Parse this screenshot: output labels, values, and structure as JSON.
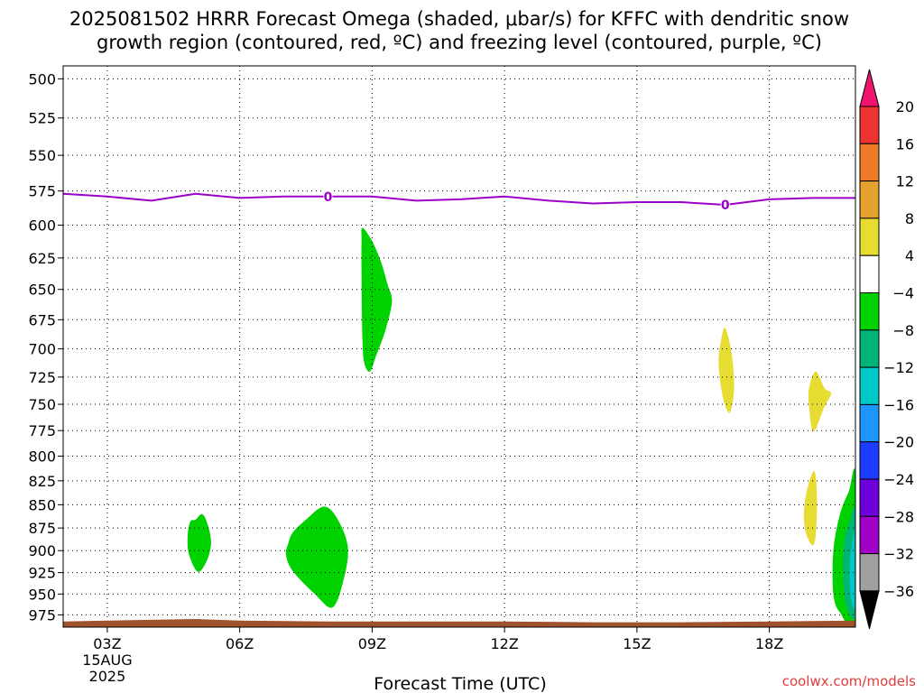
{
  "chart_data": {
    "type": "contour",
    "title": [
      "2025081502 HRRR Forecast Omega (shaded, μbar/s) for KFFC with dendritic snow",
      "growth region (contoured, red, ºC) and freezing level (contoured, purple, ºC)"
    ],
    "xlabel": "Forecast Time (UTC)",
    "ylabel": "",
    "x_ticks": [
      {
        "hour": 3,
        "label": "03Z",
        "sub": [
          "15AUG",
          "2025"
        ]
      },
      {
        "hour": 6,
        "label": "06Z",
        "sub": []
      },
      {
        "hour": 9,
        "label": "09Z",
        "sub": []
      },
      {
        "hour": 12,
        "label": "12Z",
        "sub": []
      },
      {
        "hour": 15,
        "label": "15Z",
        "sub": []
      },
      {
        "hour": 18,
        "label": "18Z",
        "sub": []
      }
    ],
    "xlim": [
      2,
      19.95
    ],
    "y_ticks": [
      500,
      525,
      550,
      575,
      600,
      625,
      650,
      675,
      700,
      725,
      750,
      775,
      800,
      825,
      850,
      875,
      900,
      925,
      950,
      975
    ],
    "ylim": [
      492,
      990
    ],
    "y_scale": "log",
    "grid": true,
    "colorbar": {
      "labels": [
        "20",
        "16",
        "12",
        "8",
        "4",
        "−4",
        "−8",
        "−12",
        "−16",
        "−20",
        "−24",
        "−28",
        "−32",
        "−36"
      ],
      "colors": [
        "#f0146e",
        "#ee3232",
        "#ee7a28",
        "#e6a22e",
        "#e6dc32",
        "#ffffff",
        "#00d200",
        "#00b478",
        "#00c8c8",
        "#1e96ff",
        "#1e3cff",
        "#6e00dc",
        "#a000c8",
        "#a0a0a0",
        "#000000"
      ]
    },
    "freezing_level": {
      "color": "#9a00c8",
      "label": "0",
      "label_points": [
        [
          8.0,
          579
        ],
        [
          17.0,
          585
        ]
      ],
      "points": [
        [
          2.0,
          577
        ],
        [
          3.0,
          579
        ],
        [
          4.0,
          582
        ],
        [
          5.0,
          577
        ],
        [
          6.0,
          580
        ],
        [
          7.0,
          579
        ],
        [
          8.0,
          579
        ],
        [
          9.0,
          579
        ],
        [
          10.0,
          582
        ],
        [
          11.0,
          581
        ],
        [
          12.0,
          579
        ],
        [
          13.0,
          582
        ],
        [
          14.0,
          584
        ],
        [
          15.0,
          583
        ],
        [
          16.0,
          583
        ],
        [
          17.0,
          585
        ],
        [
          18.0,
          581
        ],
        [
          19.0,
          580
        ],
        [
          19.95,
          580
        ]
      ]
    },
    "omega_regions": [
      {
        "value_range": [
          -8,
          -4
        ],
        "color": "#00d200",
        "points": [
          [
            8.78,
            602
          ],
          [
            9.0,
            612
          ],
          [
            9.2,
            628
          ],
          [
            9.35,
            646
          ],
          [
            9.45,
            660
          ],
          [
            9.3,
            684
          ],
          [
            9.1,
            705
          ],
          [
            8.95,
            720
          ],
          [
            8.82,
            712
          ],
          [
            8.78,
            690
          ],
          [
            8.76,
            640
          ],
          [
            8.76,
            612
          ]
        ]
      },
      {
        "value_range": [
          -8,
          -4
        ],
        "color": "#00d200",
        "points": [
          [
            5.0,
            866
          ],
          [
            5.15,
            860
          ],
          [
            5.28,
            872
          ],
          [
            5.35,
            892
          ],
          [
            5.25,
            912
          ],
          [
            5.05,
            924
          ],
          [
            4.85,
            904
          ],
          [
            4.82,
            884
          ],
          [
            4.88,
            868
          ]
        ]
      },
      {
        "value_range": [
          -8,
          -4
        ],
        "color": "#00d200",
        "points": [
          [
            7.5,
            866
          ],
          [
            7.9,
            852
          ],
          [
            8.2,
            864
          ],
          [
            8.45,
            896
          ],
          [
            8.35,
            934
          ],
          [
            8.1,
            966
          ],
          [
            7.7,
            950
          ],
          [
            7.2,
            923
          ],
          [
            7.05,
            905
          ],
          [
            7.1,
            892
          ],
          [
            7.2,
            880
          ]
        ]
      },
      {
        "value_range": [
          -8,
          -4
        ],
        "color": "#00d200",
        "points": [
          [
            19.95,
            820
          ],
          [
            19.95,
            982
          ],
          [
            19.6,
            972
          ],
          [
            19.45,
            950
          ],
          [
            19.45,
            900
          ],
          [
            19.6,
            860
          ],
          [
            19.8,
            836
          ]
        ]
      },
      {
        "value_range": [
          -12,
          -8
        ],
        "color": "#00b478",
        "points": [
          [
            19.95,
            858
          ],
          [
            19.95,
            972
          ],
          [
            19.75,
            965
          ],
          [
            19.68,
            930
          ],
          [
            19.7,
            890
          ],
          [
            19.82,
            868
          ]
        ]
      },
      {
        "value_range": [
          -16,
          -12
        ],
        "color": "#00c8c8",
        "points": [
          [
            19.95,
            880
          ],
          [
            19.95,
            962
          ],
          [
            19.85,
            955
          ],
          [
            19.82,
            925
          ],
          [
            19.85,
            900
          ]
        ]
      },
      {
        "value_range": [
          4,
          8
        ],
        "color": "#e6dc32",
        "points": [
          [
            17.0,
            682
          ],
          [
            17.15,
            705
          ],
          [
            17.2,
            736
          ],
          [
            17.1,
            758
          ],
          [
            16.95,
            744
          ],
          [
            16.85,
            714
          ],
          [
            16.9,
            694
          ]
        ]
      },
      {
        "value_range": [
          4,
          8
        ],
        "color": "#e6dc32",
        "points": [
          [
            19.05,
            720
          ],
          [
            19.25,
            735
          ],
          [
            19.4,
            740
          ],
          [
            19.25,
            752
          ],
          [
            19.0,
            776
          ],
          [
            18.9,
            752
          ],
          [
            18.9,
            735
          ]
        ]
      },
      {
        "value_range": [
          4,
          8
        ],
        "color": "#e6dc32",
        "points": [
          [
            19.02,
            815
          ],
          [
            19.08,
            848
          ],
          [
            19.02,
            892
          ],
          [
            18.85,
            884
          ],
          [
            18.78,
            862
          ],
          [
            18.85,
            835
          ]
        ]
      }
    ],
    "terrain": {
      "color": "#a0522d",
      "points": [
        [
          2.0,
          983
        ],
        [
          3.0,
          982
        ],
        [
          4.0,
          981
        ],
        [
          5.0,
          980
        ],
        [
          6.0,
          982
        ],
        [
          8.0,
          983
        ],
        [
          10.0,
          983
        ],
        [
          12.0,
          983
        ],
        [
          14.0,
          984
        ],
        [
          16.0,
          984
        ],
        [
          18.0,
          983
        ],
        [
          19.95,
          982
        ]
      ]
    },
    "credit": "coolwx.com/models"
  }
}
